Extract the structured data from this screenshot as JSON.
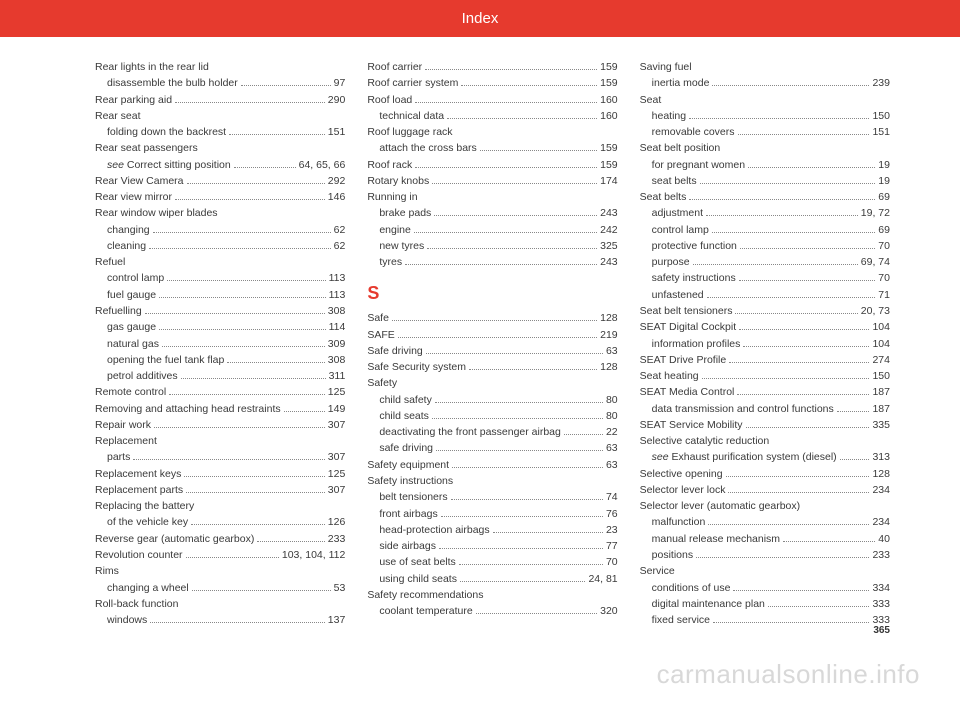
{
  "header": {
    "title": "Index"
  },
  "page_number": "365",
  "watermark": "carmanualsonline.info",
  "columns": [
    [
      {
        "type": "head",
        "label": "Rear lights in the rear lid"
      },
      {
        "type": "sub",
        "label": "disassemble the bulb holder",
        "page": "97"
      },
      {
        "type": "entry",
        "label": "Rear parking aid",
        "page": "290"
      },
      {
        "type": "head",
        "label": "Rear seat"
      },
      {
        "type": "sub",
        "label": "folding down the backrest",
        "page": "151"
      },
      {
        "type": "head",
        "label": "Rear seat passengers"
      },
      {
        "type": "sub",
        "italic_prefix": "see ",
        "label": "Correct sitting position",
        "page": "64, 65, 66"
      },
      {
        "type": "entry",
        "label": "Rear View Camera",
        "page": "292"
      },
      {
        "type": "entry",
        "label": "Rear view mirror",
        "page": "146"
      },
      {
        "type": "head",
        "label": "Rear window wiper blades"
      },
      {
        "type": "sub",
        "label": "changing",
        "page": "62"
      },
      {
        "type": "sub",
        "label": "cleaning",
        "page": "62"
      },
      {
        "type": "head",
        "label": "Refuel"
      },
      {
        "type": "sub",
        "label": "control lamp",
        "page": "113"
      },
      {
        "type": "sub",
        "label": "fuel gauge",
        "page": "113"
      },
      {
        "type": "entry",
        "label": "Refuelling",
        "page": "308"
      },
      {
        "type": "sub",
        "label": "gas gauge",
        "page": "114"
      },
      {
        "type": "sub",
        "label": "natural gas",
        "page": "309"
      },
      {
        "type": "sub",
        "label": "opening the fuel tank flap",
        "page": "308"
      },
      {
        "type": "sub",
        "label": "petrol additives",
        "page": "311"
      },
      {
        "type": "entry",
        "label": "Remote control",
        "page": "125"
      },
      {
        "type": "entry",
        "label": "Removing and attaching head restraints",
        "page": "149"
      },
      {
        "type": "entry",
        "label": "Repair work",
        "page": "307"
      },
      {
        "type": "head",
        "label": "Replacement"
      },
      {
        "type": "sub",
        "label": "parts",
        "page": "307"
      },
      {
        "type": "entry",
        "label": "Replacement keys",
        "page": "125"
      },
      {
        "type": "entry",
        "label": "Replacement parts",
        "page": "307"
      },
      {
        "type": "head",
        "label": "Replacing the battery"
      },
      {
        "type": "sub",
        "label": "of the vehicle key",
        "page": "126"
      },
      {
        "type": "entry",
        "label": "Reverse gear (automatic gearbox)",
        "page": "233"
      },
      {
        "type": "entry",
        "label": "Revolution counter",
        "page": "103, 104, 112"
      },
      {
        "type": "head",
        "label": "Rims"
      },
      {
        "type": "sub",
        "label": "changing a wheel",
        "page": "53"
      },
      {
        "type": "head",
        "label": "Roll-back function"
      },
      {
        "type": "sub",
        "label": "windows",
        "page": "137"
      }
    ],
    [
      {
        "type": "entry",
        "label": "Roof carrier",
        "page": "159"
      },
      {
        "type": "entry",
        "label": "Roof carrier system",
        "page": "159"
      },
      {
        "type": "entry",
        "label": "Roof load",
        "page": "160"
      },
      {
        "type": "sub",
        "label": "technical data",
        "page": "160"
      },
      {
        "type": "head",
        "label": "Roof luggage rack"
      },
      {
        "type": "sub",
        "label": "attach the cross bars",
        "page": "159"
      },
      {
        "type": "entry",
        "label": "Roof rack",
        "page": "159"
      },
      {
        "type": "entry",
        "label": "Rotary knobs",
        "page": "174"
      },
      {
        "type": "head",
        "label": "Running in"
      },
      {
        "type": "sub",
        "label": "brake pads",
        "page": "243"
      },
      {
        "type": "sub",
        "label": "engine",
        "page": "242"
      },
      {
        "type": "sub",
        "label": "new tyres",
        "page": "325"
      },
      {
        "type": "sub",
        "label": "tyres",
        "page": "243"
      },
      {
        "type": "letter",
        "label": "S"
      },
      {
        "type": "entry",
        "label": "Safe",
        "page": "128"
      },
      {
        "type": "entry",
        "label": "SAFE",
        "page": "219"
      },
      {
        "type": "entry",
        "label": "Safe driving",
        "page": "63"
      },
      {
        "type": "entry",
        "label": "Safe Security system",
        "page": "128"
      },
      {
        "type": "head",
        "label": "Safety"
      },
      {
        "type": "sub",
        "label": "child safety",
        "page": "80"
      },
      {
        "type": "sub",
        "label": "child seats",
        "page": "80"
      },
      {
        "type": "sub",
        "label": "deactivating the front passenger airbag",
        "page": "22"
      },
      {
        "type": "sub",
        "label": "safe driving",
        "page": "63"
      },
      {
        "type": "entry",
        "label": "Safety equipment",
        "page": "63"
      },
      {
        "type": "head",
        "label": "Safety instructions"
      },
      {
        "type": "sub",
        "label": "belt tensioners",
        "page": "74"
      },
      {
        "type": "sub",
        "label": "front airbags",
        "page": "76"
      },
      {
        "type": "sub",
        "label": "head-protection airbags",
        "page": "23"
      },
      {
        "type": "sub",
        "label": "side airbags",
        "page": "77"
      },
      {
        "type": "sub",
        "label": "use of seat belts",
        "page": "70"
      },
      {
        "type": "sub",
        "label": "using child seats",
        "page": "24, 81"
      },
      {
        "type": "head",
        "label": "Safety recommendations"
      },
      {
        "type": "sub",
        "label": "coolant temperature",
        "page": "320"
      }
    ],
    [
      {
        "type": "head",
        "label": "Saving fuel"
      },
      {
        "type": "sub",
        "label": "inertia mode",
        "page": "239"
      },
      {
        "type": "head",
        "label": "Seat"
      },
      {
        "type": "sub",
        "label": "heating",
        "page": "150"
      },
      {
        "type": "sub",
        "label": "removable covers",
        "page": "151"
      },
      {
        "type": "head",
        "label": "Seat belt position"
      },
      {
        "type": "sub",
        "label": "for pregnant women",
        "page": "19"
      },
      {
        "type": "sub",
        "label": "seat belts",
        "page": "19"
      },
      {
        "type": "entry",
        "label": "Seat belts",
        "page": "69"
      },
      {
        "type": "sub",
        "label": "adjustment",
        "page": "19, 72"
      },
      {
        "type": "sub",
        "label": "control lamp",
        "page": "69"
      },
      {
        "type": "sub",
        "label": "protective function",
        "page": "70"
      },
      {
        "type": "sub",
        "label": "purpose",
        "page": "69, 74"
      },
      {
        "type": "sub",
        "label": "safety instructions",
        "page": "70"
      },
      {
        "type": "sub",
        "label": "unfastened",
        "page": "71"
      },
      {
        "type": "entry",
        "label": "Seat belt tensioners",
        "page": "20, 73"
      },
      {
        "type": "entry",
        "label": "SEAT Digital Cockpit",
        "page": "104"
      },
      {
        "type": "sub",
        "label": "information profiles",
        "page": "104"
      },
      {
        "type": "entry",
        "label": "SEAT Drive Profile",
        "page": "274"
      },
      {
        "type": "entry",
        "label": "Seat heating",
        "page": "150"
      },
      {
        "type": "entry",
        "label": "SEAT Media Control",
        "page": "187"
      },
      {
        "type": "sub",
        "label": "data transmission and control functions",
        "page": "187"
      },
      {
        "type": "entry",
        "label": "SEAT Service Mobility",
        "page": "335"
      },
      {
        "type": "head",
        "label": "Selective catalytic reduction"
      },
      {
        "type": "sub",
        "italic_prefix": "see ",
        "label": "Exhaust purification system (diesel)",
        "page": "313"
      },
      {
        "type": "entry",
        "label": "Selective opening",
        "page": "128"
      },
      {
        "type": "entry",
        "label": "Selector lever lock",
        "page": "234"
      },
      {
        "type": "head",
        "label": "Selector lever (automatic gearbox)"
      },
      {
        "type": "sub",
        "label": "malfunction",
        "page": "234"
      },
      {
        "type": "sub",
        "label": "manual release mechanism",
        "page": "40"
      },
      {
        "type": "sub",
        "label": "positions",
        "page": "233"
      },
      {
        "type": "head",
        "label": "Service"
      },
      {
        "type": "sub",
        "label": "conditions of use",
        "page": "334"
      },
      {
        "type": "sub",
        "label": "digital maintenance plan",
        "page": "333"
      },
      {
        "type": "sub",
        "label": "fixed service",
        "page": "333"
      }
    ]
  ]
}
